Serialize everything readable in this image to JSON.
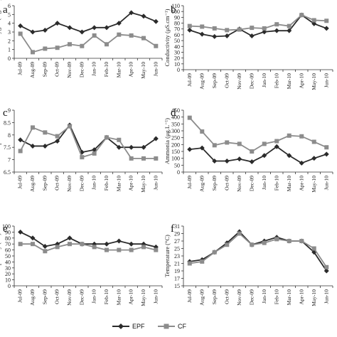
{
  "chart_data": [
    {
      "type": "line",
      "panel_label": "a",
      "ylabel": "Dissolved oxygen (mg.L⁻¹)",
      "ylim": [
        0,
        6
      ],
      "yticks": [
        0,
        1,
        2,
        3,
        4,
        5,
        6
      ],
      "categories": [
        "Jul-09",
        "Aug-09",
        "Sep-09",
        "Oct-09",
        "Nov-09",
        "Dec-09",
        "Jan-10",
        "Feb-10",
        "Mar-10",
        "Apr-10",
        "May-10",
        "Jun-10"
      ],
      "series": [
        {
          "name": "EPF",
          "values": [
            3.7,
            3.0,
            3.2,
            4.0,
            3.5,
            3.0,
            3.5,
            3.5,
            4.0,
            5.2,
            4.8,
            4.2
          ]
        },
        {
          "name": "CF",
          "values": [
            2.8,
            0.7,
            1.1,
            1.2,
            1.6,
            1.4,
            2.6,
            1.6,
            2.7,
            2.6,
            2.3,
            1.4
          ]
        }
      ]
    },
    {
      "type": "line",
      "panel_label": "b",
      "ylabel": "Conductivity (μS.cm⁻¹)",
      "ylim": [
        0,
        110
      ],
      "yticks": [
        0,
        10,
        20,
        30,
        40,
        50,
        60,
        70,
        80,
        90,
        100,
        110
      ],
      "categories": [
        "Jul-09",
        "Aug-09",
        "Sep-09",
        "Oct-09",
        "Nov-09",
        "Dec-09",
        "Jan-10",
        "Feb-10",
        "Mar-10",
        "Apr-10",
        "May-10",
        "Jun-10"
      ],
      "series": [
        {
          "name": "EPF",
          "values": [
            68,
            61,
            57,
            58,
            70,
            58,
            65,
            67,
            67,
            94,
            79,
            71
          ]
        },
        {
          "name": "CF",
          "values": [
            75,
            74,
            71,
            68,
            69,
            72,
            71,
            78,
            75,
            94,
            85,
            84
          ]
        }
      ]
    },
    {
      "type": "line",
      "panel_label": "c",
      "ylabel": "pH",
      "ylim": [
        6.5,
        9
      ],
      "yticks": [
        6.5,
        7,
        7.5,
        8,
        8.5,
        9
      ],
      "categories": [
        "Jul-09",
        "Aug-09",
        "Sep-09",
        "Oct-09",
        "Nov-09",
        "Dec-09",
        "Jan-10",
        "Feb-10",
        "Mar-10",
        "Apr-10",
        "May-10",
        "Jun-10"
      ],
      "series": [
        {
          "name": "EPF",
          "values": [
            7.8,
            7.55,
            7.55,
            7.75,
            8.4,
            7.3,
            7.4,
            7.9,
            7.5,
            7.5,
            7.5,
            7.85
          ]
        },
        {
          "name": "CF",
          "values": [
            7.35,
            8.3,
            8.1,
            7.95,
            8.35,
            7.1,
            7.25,
            7.9,
            7.8,
            7.05,
            7.05,
            7.05
          ]
        }
      ]
    },
    {
      "type": "line",
      "panel_label": "d",
      "ylabel": "Ammonia (μg.L⁻¹)",
      "ylim": [
        0,
        450
      ],
      "yticks": [
        0,
        50,
        100,
        150,
        200,
        250,
        300,
        350,
        400,
        450
      ],
      "categories": [
        "Jul-09",
        "Aug-09",
        "Sep-09",
        "Oct-09",
        "Nov-09",
        "Dec-09",
        "Jan-10",
        "Feb-10",
        "Mar-10",
        "Apr-10",
        "May-10",
        "Jun-10"
      ],
      "series": [
        {
          "name": "EPF",
          "values": [
            165,
            175,
            80,
            80,
            95,
            75,
            120,
            185,
            120,
            65,
            100,
            130
          ]
        },
        {
          "name": "CF",
          "values": [
            395,
            295,
            195,
            215,
            205,
            150,
            205,
            225,
            265,
            260,
            220,
            180
          ]
        }
      ]
    },
    {
      "type": "line",
      "panel_label": "e",
      "ylabel": "Transparency (cm)",
      "ylim": [
        0,
        100
      ],
      "yticks": [
        0,
        10,
        20,
        30,
        40,
        50,
        60,
        70,
        80,
        90,
        100
      ],
      "categories": [
        "Jul-09",
        "Aug-09",
        "Sep-09",
        "Oct-09",
        "Nov-09",
        "Dec-09",
        "Jan-10",
        "Feb-10",
        "Mar-10",
        "Apr-10",
        "May-10",
        "Jun-10"
      ],
      "series": [
        {
          "name": "EPF",
          "values": [
            90,
            80,
            66,
            70,
            80,
            70,
            70,
            70,
            75,
            70,
            70,
            65
          ]
        },
        {
          "name": "CF",
          "values": [
            70,
            70,
            58,
            65,
            70,
            70,
            65,
            60,
            60,
            60,
            65,
            60
          ]
        }
      ]
    },
    {
      "type": "line",
      "panel_label": "f",
      "ylabel": "Temperature (°C)",
      "ylim": [
        15,
        31
      ],
      "yticks": [
        15,
        17,
        19,
        21,
        23,
        25,
        27,
        29,
        31
      ],
      "categories": [
        "Jul-09",
        "Aug-09",
        "Sep-09",
        "Oct-09",
        "Nov-09",
        "Dec-09",
        "Jan-10",
        "Feb-10",
        "Mar-10",
        "Apr-10",
        "May-10",
        "Jun-10"
      ],
      "series": [
        {
          "name": "EPF",
          "values": [
            21.5,
            22.0,
            24.0,
            26.5,
            29.5,
            26.0,
            27.0,
            28.0,
            27.0,
            27.0,
            24.0,
            19.0
          ]
        },
        {
          "name": "CF",
          "values": [
            21.0,
            21.5,
            24.0,
            26.0,
            29.0,
            26.0,
            26.5,
            27.5,
            27.0,
            27.0,
            25.0,
            20.0
          ]
        }
      ]
    }
  ],
  "legend": {
    "position": "bottom-center",
    "items": [
      {
        "name": "EPF",
        "marker": "diamond",
        "color": "#2b2b2b"
      },
      {
        "name": "CF",
        "marker": "square",
        "color": "#8c8c8c"
      }
    ]
  }
}
